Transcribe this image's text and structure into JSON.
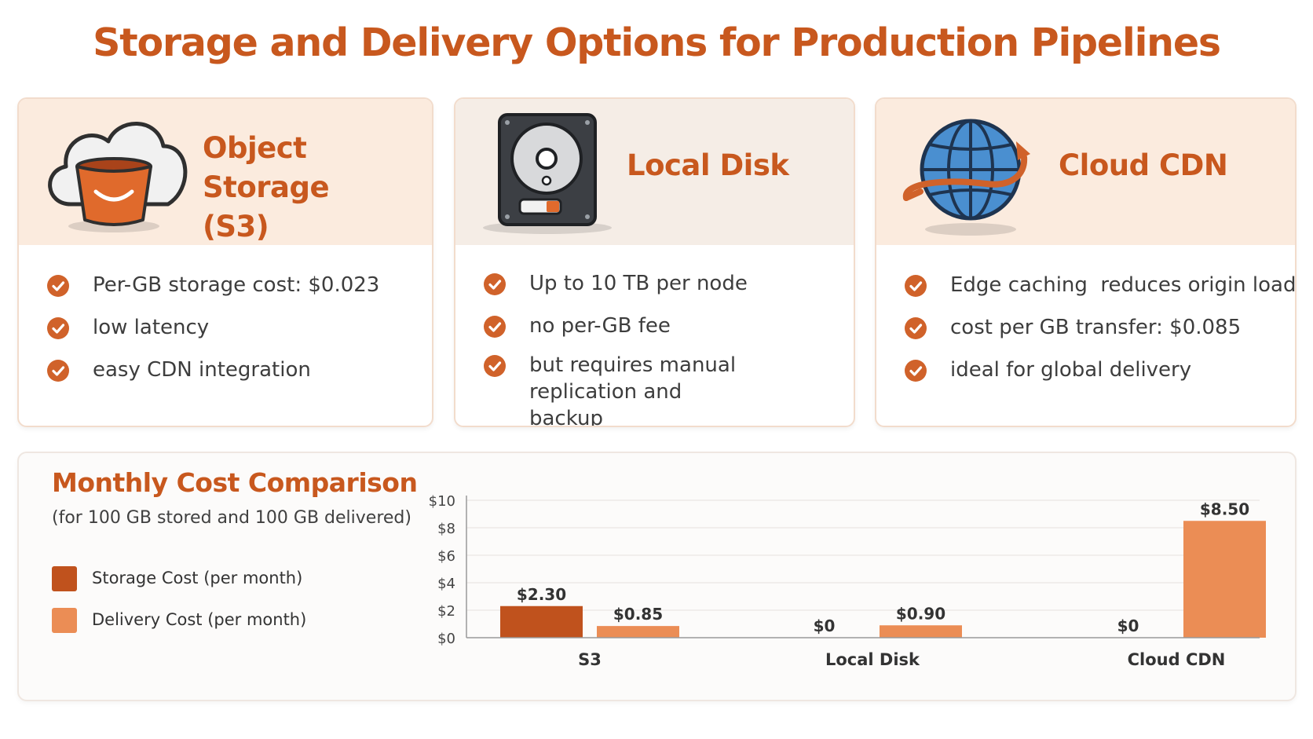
{
  "title": "Storage and Delivery Options for Production Pipelines",
  "cards": [
    {
      "title_line1": "Object Storage",
      "title_line2": "(S3)",
      "icon": "cloud-bucket-icon",
      "features": [
        "Per-GB storage cost: $0.023",
        "low latency",
        "easy CDN integration"
      ]
    },
    {
      "title_line1": "Local Disk",
      "title_line2": "",
      "icon": "hard-disk-icon",
      "features": [
        "Up to 10 TB per node",
        "no per-GB fee",
        "but requires manual replication and backup"
      ]
    },
    {
      "title_line1": "Cloud CDN",
      "title_line2": "",
      "icon": "globe-arrow-icon",
      "features": [
        "Edge caching  reduces origin load",
        "cost per GB transfer: $0.085",
        "ideal for global delivery"
      ]
    }
  ],
  "colors": {
    "accent": "#c8581e",
    "storage": "#c0521d",
    "delivery": "#eb8d55",
    "card_header": "#fbebde",
    "card_header_alt": "#f5ede6"
  },
  "chart_data": {
    "type": "bar",
    "title": "Monthly Cost Comparison",
    "subtitle": "(for 100 GB stored and 100 GB delivered)",
    "categories": [
      "S3",
      "Local Disk",
      "Cloud CDN"
    ],
    "series": [
      {
        "name": "Storage Cost (per month)",
        "values": [
          2.3,
          0,
          0
        ],
        "labels": [
          "$2.30",
          "$0",
          "$0"
        ]
      },
      {
        "name": "Delivery Cost (per month)",
        "values": [
          0.85,
          0.9,
          8.5
        ],
        "labels": [
          "$0.85",
          "$0.90",
          "$8.50"
        ]
      }
    ],
    "ylim": [
      0,
      10
    ],
    "yticks": [
      0,
      2,
      4,
      6,
      8,
      10
    ],
    "ytick_labels": [
      "$0",
      "$2",
      "$4",
      "$6",
      "$8",
      "$10"
    ],
    "grid": true,
    "legend": "left"
  }
}
